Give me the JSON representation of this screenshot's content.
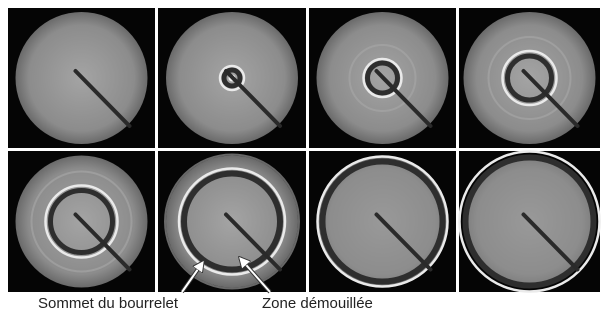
{
  "labels": {
    "rim_top": "Sommet du bourrelet",
    "dewetted_zone": "Zone démouillée"
  }
}
